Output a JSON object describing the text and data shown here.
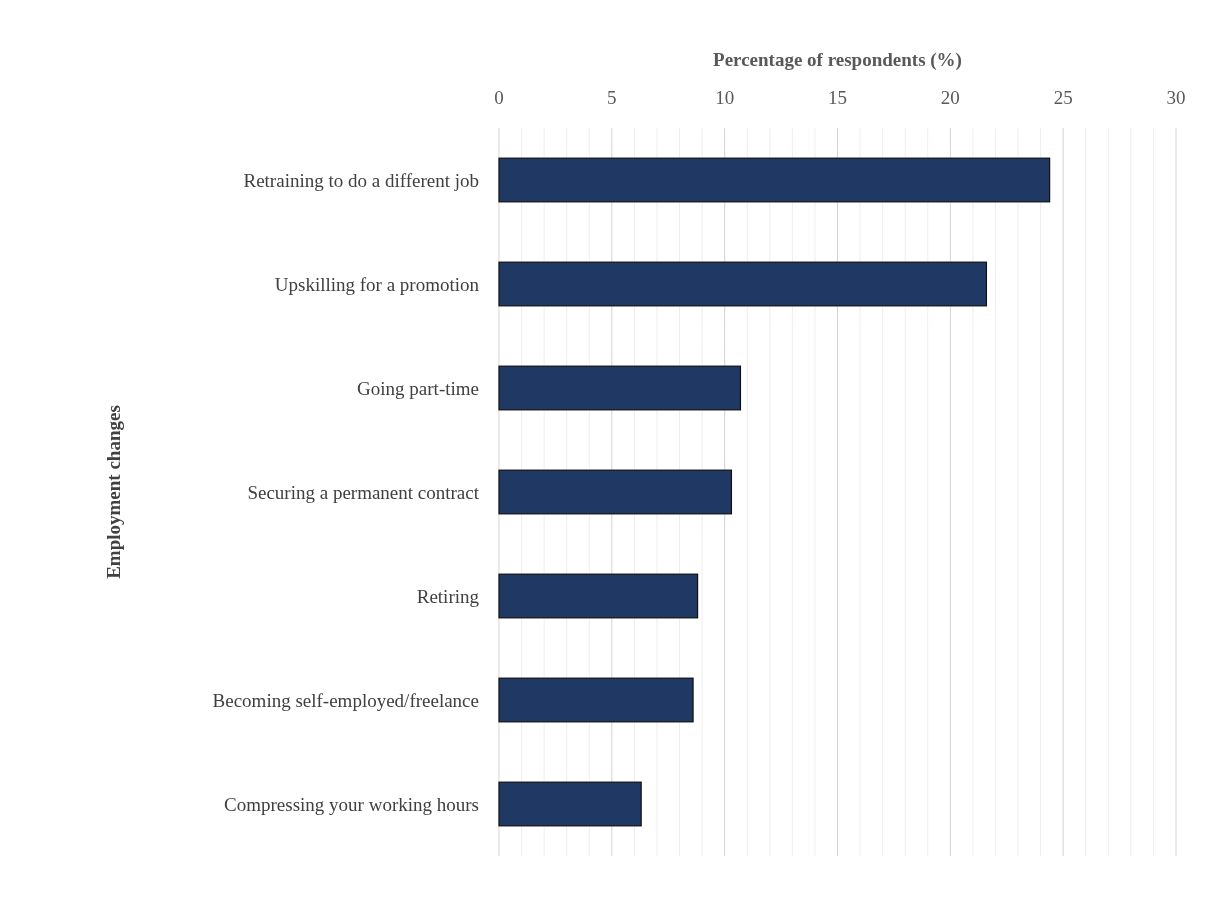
{
  "chart_data": {
    "type": "bar",
    "orientation": "horizontal",
    "xlabel": "Percentage of respondents (%)",
    "ylabel": "Employment changes",
    "categories": [
      "Retraining to do a different job",
      "Upskilling for a promotion",
      "Going part-time",
      "Securing a permanent contract",
      "Retiring",
      "Becoming self-employed/freelance",
      "Compressing your working hours"
    ],
    "values": [
      24.4,
      21.6,
      10.7,
      10.3,
      8.8,
      8.6,
      6.3
    ],
    "color": "#1f3864",
    "xlim": [
      0,
      30
    ],
    "xticks": [
      0,
      {
        "value": 1,
        "label": null
      },
      {
        "value": 2,
        "label": null
      },
      {
        "value": 3,
        "label": null
      },
      {
        "value": 4,
        "label": null
      },
      5,
      {
        "value": 6,
        "label": null
      },
      {
        "value": 7,
        "label": null
      },
      {
        "value": 8,
        "label": null
      },
      {
        "value": 9,
        "label": null
      },
      10,
      {
        "value": 11,
        "label": null
      },
      {
        "value": 12,
        "label": null
      },
      {
        "value": 13,
        "label": null
      },
      {
        "value": 14,
        "label": null
      },
      15,
      {
        "value": 16,
        "label": null
      },
      {
        "value": 17,
        "label": null
      },
      {
        "value": 18,
        "label": null
      },
      {
        "value": 19,
        "label": null
      },
      20,
      {
        "value": 21,
        "label": null
      },
      {
        "value": 22,
        "label": null
      },
      {
        "value": 23,
        "label": null
      },
      {
        "value": 24,
        "label": null
      },
      25,
      {
        "value": 26,
        "label": null
      },
      {
        "value": 27,
        "label": null
      },
      {
        "value": 28,
        "label": null
      },
      {
        "value": 29,
        "label": null
      },
      30
    ],
    "grid": "x"
  }
}
